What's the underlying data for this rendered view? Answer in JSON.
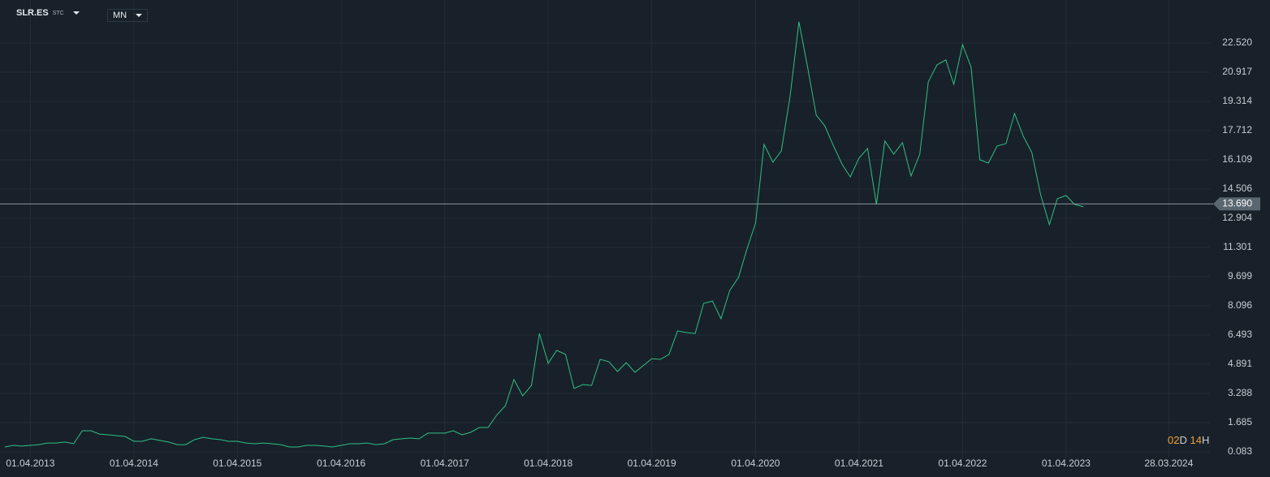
{
  "ui": {
    "symbol": "SLR.ES",
    "exchange": "STC",
    "interval": "MN",
    "countdown": {
      "days": "02",
      "days_unit": "D",
      "hours": "14",
      "hours_unit": "H"
    }
  },
  "chart_data": {
    "type": "line",
    "color": "#2fbf84",
    "grid": true,
    "x": [
      "01.01.2013",
      "01.02.2013",
      "01.03.2013",
      "01.04.2013",
      "01.05.2013",
      "01.06.2013",
      "01.07.2013",
      "01.08.2013",
      "01.09.2013",
      "01.10.2013",
      "01.11.2013",
      "01.12.2013",
      "01.01.2014",
      "01.02.2014",
      "01.03.2014",
      "01.04.2014",
      "01.05.2014",
      "01.06.2014",
      "01.07.2014",
      "01.08.2014",
      "01.09.2014",
      "01.10.2014",
      "01.11.2014",
      "01.12.2014",
      "01.01.2015",
      "01.02.2015",
      "01.03.2015",
      "01.04.2015",
      "01.05.2015",
      "01.06.2015",
      "01.07.2015",
      "01.08.2015",
      "01.09.2015",
      "01.10.2015",
      "01.11.2015",
      "01.12.2015",
      "01.01.2016",
      "01.02.2016",
      "01.03.2016",
      "01.04.2016",
      "01.05.2016",
      "01.06.2016",
      "01.07.2016",
      "01.08.2016",
      "01.09.2016",
      "01.10.2016",
      "01.11.2016",
      "01.12.2016",
      "01.01.2017",
      "01.02.2017",
      "01.03.2017",
      "01.04.2017",
      "01.05.2017",
      "01.06.2017",
      "01.07.2017",
      "01.08.2017",
      "01.09.2017",
      "01.10.2017",
      "01.11.2017",
      "01.12.2017",
      "01.01.2018",
      "01.02.2018",
      "01.03.2018",
      "01.04.2018",
      "01.05.2018",
      "01.06.2018",
      "01.07.2018",
      "01.08.2018",
      "01.09.2018",
      "01.10.2018",
      "01.11.2018",
      "01.12.2018",
      "01.01.2019",
      "01.02.2019",
      "01.03.2019",
      "01.04.2019",
      "01.05.2019",
      "01.06.2019",
      "01.07.2019",
      "01.08.2019",
      "01.09.2019",
      "01.10.2019",
      "01.11.2019",
      "01.12.2019",
      "01.01.2020",
      "01.02.2020",
      "01.03.2020",
      "01.04.2020",
      "01.05.2020",
      "01.06.2020",
      "01.07.2020",
      "01.08.2020",
      "01.09.2020",
      "01.10.2020",
      "01.11.2020",
      "01.12.2020",
      "01.01.2021",
      "01.02.2021",
      "01.03.2021",
      "01.04.2021",
      "01.05.2021",
      "01.06.2021",
      "01.07.2021",
      "01.08.2021",
      "01.09.2021",
      "01.10.2021",
      "01.11.2021",
      "01.12.2021",
      "01.01.2022",
      "01.02.2022",
      "01.03.2022",
      "01.04.2022",
      "01.05.2022",
      "01.06.2022",
      "01.07.2022",
      "01.08.2022",
      "01.09.2022",
      "01.10.2022",
      "01.11.2022",
      "01.12.2022",
      "01.01.2023",
      "01.02.2023",
      "01.03.2023",
      "01.04.2023",
      "01.05.2023",
      "01.06.2023"
    ],
    "values": [
      0.35,
      0.44,
      0.4,
      0.44,
      0.48,
      0.57,
      0.57,
      0.62,
      0.53,
      1.24,
      1.24,
      1.06,
      1.02,
      0.97,
      0.93,
      0.66,
      0.66,
      0.8,
      0.71,
      0.62,
      0.48,
      0.48,
      0.75,
      0.88,
      0.8,
      0.75,
      0.66,
      0.66,
      0.57,
      0.53,
      0.57,
      0.53,
      0.48,
      0.35,
      0.35,
      0.44,
      0.44,
      0.4,
      0.35,
      0.44,
      0.53,
      0.53,
      0.57,
      0.48,
      0.53,
      0.75,
      0.8,
      0.84,
      0.8,
      1.11,
      1.11,
      1.11,
      1.24,
      1.02,
      1.15,
      1.42,
      1.42,
      2.09,
      2.62,
      4.05,
      3.16,
      3.73,
      6.58,
      4.94,
      5.65,
      5.43,
      3.56,
      3.78,
      3.73,
      5.16,
      5.03,
      4.49,
      4.98,
      4.45,
      4.8,
      5.2,
      5.16,
      5.43,
      6.72,
      6.63,
      6.58,
      8.23,
      8.36,
      7.39,
      8.94,
      9.66,
      11.17,
      12.64,
      16.96,
      15.98,
      16.6,
      19.63,
      23.68,
      21.23,
      18.56,
      17.98,
      16.87,
      15.84,
      15.17,
      16.2,
      16.73,
      13.66,
      17.14,
      16.42,
      17.05,
      15.22,
      16.42,
      20.39,
      21.32,
      21.59,
      20.25,
      22.43,
      21.19,
      16.11,
      15.93,
      16.87,
      17.0,
      18.65,
      17.4,
      16.51,
      14.2,
      12.55,
      13.97,
      14.15,
      13.66,
      13.53
    ],
    "last_price": {
      "value": 13.69,
      "label": "13.690"
    },
    "xlim": [
      "15.12.2012",
      "20.08.2024"
    ],
    "xticks": [
      "01.04.2013",
      "01.04.2014",
      "01.04.2015",
      "01.04.2016",
      "01.04.2017",
      "01.04.2018",
      "01.04.2019",
      "01.04.2020",
      "01.04.2021",
      "01.04.2022",
      "01.04.2023",
      "28.03.2024"
    ],
    "ylim": [
      -0.273,
      24.7
    ],
    "yticks": [
      0.083,
      1.685,
      3.288,
      4.891,
      6.493,
      8.096,
      9.699,
      11.301,
      12.904,
      14.506,
      16.109,
      17.712,
      19.314,
      20.917,
      {
        "value": 22.52,
        "label": "22.520"
      }
    ]
  }
}
